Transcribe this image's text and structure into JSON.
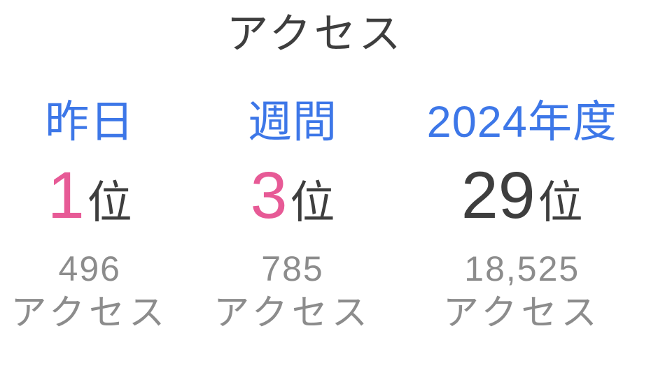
{
  "panel": {
    "title": "アクセス",
    "columns": [
      {
        "period": "昨日",
        "rank": "1",
        "unit": "位",
        "count": "496",
        "count_label": "アクセス"
      },
      {
        "period": "週間",
        "rank": "3",
        "unit": "位",
        "count": "785",
        "count_label": "アクセス"
      },
      {
        "period": "2024年度",
        "rank": "29",
        "unit": "位",
        "count": "18,525",
        "count_label": "アクセス"
      }
    ],
    "colors": {
      "link_blue": "#3D77E8",
      "rank_pink": "#E75A96",
      "text_dark": "#3E3E3E",
      "text_gray": "#8C8C8C"
    }
  }
}
